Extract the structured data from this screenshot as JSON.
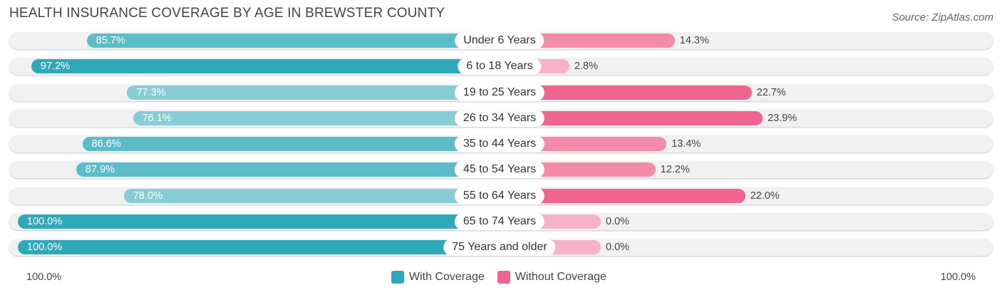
{
  "chart_data": {
    "type": "bar",
    "orientation": "horizontal-diverging",
    "title": "HEALTH INSURANCE COVERAGE BY AGE IN BREWSTER COUNTY",
    "source": "Source: ZipAtlas.com",
    "categories": [
      "Under 6 Years",
      "6 to 18 Years",
      "19 to 25 Years",
      "26 to 34 Years",
      "35 to 44 Years",
      "45 to 54 Years",
      "55 to 64 Years",
      "65 to 74 Years",
      "75 Years and older"
    ],
    "series": [
      {
        "name": "With Coverage",
        "color": "#2ea9b9",
        "values": [
          85.7,
          97.2,
          77.3,
          76.1,
          86.6,
          87.9,
          78.0,
          100.0,
          100.0
        ],
        "labels": [
          "85.7%",
          "97.2%",
          "77.3%",
          "76.1%",
          "86.6%",
          "87.9%",
          "78.0%",
          "100.0%",
          "100.0%"
        ]
      },
      {
        "name": "Without Coverage",
        "color": "#f0648f",
        "values": [
          14.3,
          2.8,
          22.7,
          23.9,
          13.4,
          12.2,
          22.0,
          0.0,
          0.0
        ],
        "labels": [
          "14.3%",
          "2.8%",
          "22.7%",
          "23.9%",
          "13.4%",
          "12.2%",
          "22.0%",
          "0.0%",
          "0.0%"
        ]
      }
    ],
    "axis": {
      "left_label": "100.0%",
      "right_label": "100.0%",
      "xlim": [
        0,
        100
      ]
    },
    "legend": [
      {
        "label": "With Coverage",
        "color": "#2ea9b9"
      },
      {
        "label": "Without Coverage",
        "color": "#f0648f"
      }
    ]
  }
}
